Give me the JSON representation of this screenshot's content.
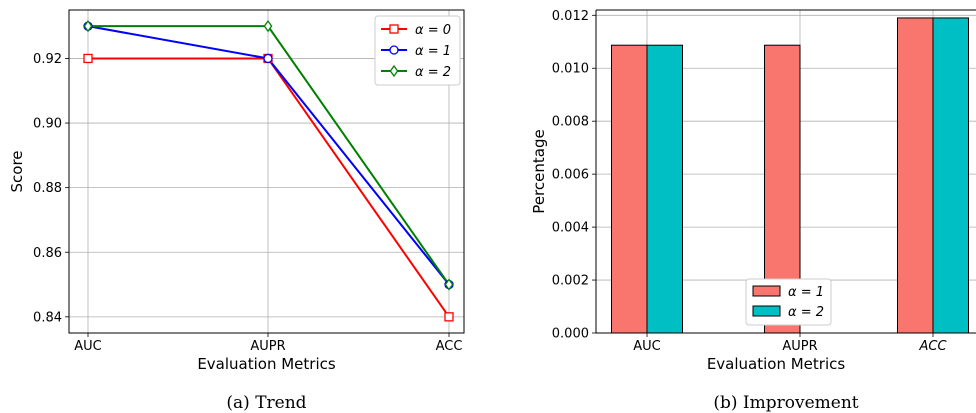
{
  "chart_data": [
    {
      "type": "line",
      "caption": "(a) Trend",
      "xlabel": "Evaluation Metrics",
      "ylabel": "Score",
      "categories": [
        "AUC",
        "AUPR",
        "ACC"
      ],
      "ylim": [
        0.835,
        0.935
      ],
      "yticks": [
        "0.84",
        "0.86",
        "0.88",
        "0.90",
        "0.92"
      ],
      "grid": true,
      "legend_position": "top-right",
      "series": [
        {
          "name": "α = 0",
          "values": [
            0.92,
            0.92,
            0.84
          ],
          "color": "#ff0000",
          "marker": "square"
        },
        {
          "name": "α = 1",
          "values": [
            0.93,
            0.92,
            0.85
          ],
          "color": "#0000ff",
          "marker": "circle"
        },
        {
          "name": "α = 2",
          "values": [
            0.93,
            0.93,
            0.85
          ],
          "color": "#008000",
          "marker": "diamond"
        }
      ]
    },
    {
      "type": "bar",
      "caption": "(b) Improvement",
      "xlabel": "Evaluation Metrics",
      "ylabel": "Percentage",
      "categories": [
        "AUC",
        "AUPR",
        "ACC"
      ],
      "ylim": [
        0,
        0.0122
      ],
      "yticks": [
        "0.000",
        "0.002",
        "0.004",
        "0.006",
        "0.008",
        "0.010",
        "0.012"
      ],
      "grid": true,
      "legend_position": "bottom-center",
      "series": [
        {
          "name": "α = 1",
          "values": [
            0.01087,
            0.01087,
            0.0119
          ],
          "color": "#f8766d"
        },
        {
          "name": "α = 2",
          "values": [
            0.01087,
            0,
            0.0119
          ],
          "color": "#00bfc4"
        }
      ]
    }
  ]
}
